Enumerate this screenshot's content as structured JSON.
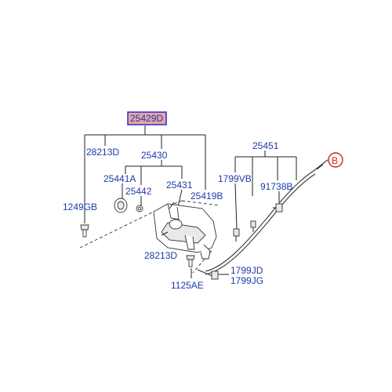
{
  "diagram": {
    "highlight_part": "25429D",
    "callout_letter": "B",
    "labels": {
      "p28213D_top": "28213D",
      "p25430": "25430",
      "p25441A": "25441A",
      "p25442": "25442",
      "p25431": "25431",
      "p25419B": "25419B",
      "p1249GB": "1249GB",
      "p28213D_bot": "28213D",
      "p1125AE": "1125AE",
      "p25451": "25451",
      "p1799VB": "1799VB",
      "p91738B": "91738B",
      "p1799JD": "1799JD",
      "p1799JG": "1799JG"
    },
    "colors": {
      "label_text": "#1d3aa8",
      "highlight_fill": "#e7a6a6",
      "highlight_border": "#2b2bd6",
      "callout_red": "#d42020"
    }
  }
}
